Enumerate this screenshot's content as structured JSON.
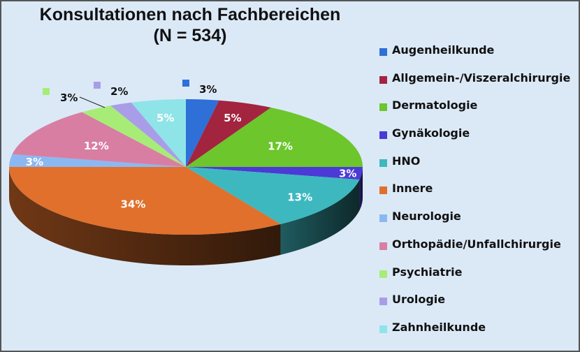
{
  "chart_data": {
    "type": "pie",
    "title_line1": "Konsultationen nach Fachbereichen",
    "title_line2": "(N = 534)",
    "three_d": true,
    "legend_position": "right",
    "slices": [
      {
        "label": "Augenheilkunde",
        "value": 3,
        "display": "3%",
        "color": "#2e6fd8"
      },
      {
        "label": "Allgemein-/Viszeralchirurgie",
        "value": 5,
        "display": "5%",
        "color": "#a3243f"
      },
      {
        "label": "Dermatologie",
        "value": 17,
        "display": "17%",
        "color": "#6cc62c"
      },
      {
        "label": "Gynäkologie",
        "value": 3,
        "display": "3%",
        "color": "#4b3ad6"
      },
      {
        "label": "HNO",
        "value": 13,
        "display": "13%",
        "color": "#3db8bf"
      },
      {
        "label": "Innere",
        "value": 34,
        "display": "34%",
        "color": "#e0702c"
      },
      {
        "label": "Neurologie",
        "value": 3,
        "display": "3%",
        "color": "#8cb8f2"
      },
      {
        "label": "Orthopädie/Unfallchirurgie",
        "value": 12,
        "display": "12%",
        "color": "#d97ea3"
      },
      {
        "label": "Psychiatrie",
        "value": 3,
        "display": "3%",
        "color": "#a8ec78"
      },
      {
        "label": "Urologie",
        "value": 2,
        "display": "2%",
        "color": "#a99de8"
      },
      {
        "label": "Zahnheilkunde",
        "value": 5,
        "display": "5%",
        "color": "#8fe4e8"
      }
    ]
  }
}
